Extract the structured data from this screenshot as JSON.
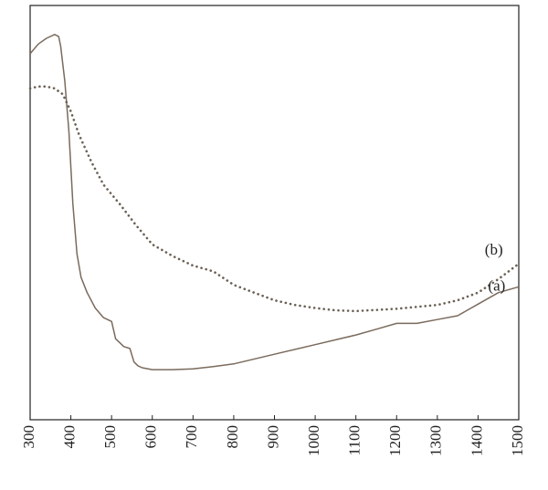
{
  "chart_data": {
    "type": "line",
    "title": "",
    "xlabel": "",
    "ylabel": "",
    "xlim": [
      300,
      1500
    ],
    "ylim": [
      0,
      1
    ],
    "x_ticks": [
      300,
      400,
      500,
      600,
      700,
      800,
      900,
      1000,
      1100,
      1200,
      1300,
      1400,
      1500
    ],
    "y_ticks": [],
    "grid": false,
    "legend": "none",
    "series_labels": [
      {
        "series": "a",
        "text": "(a)"
      },
      {
        "series": "b",
        "text": "(b)"
      }
    ],
    "colors": {
      "axis": "#222222",
      "series_a": "#7a6a5c",
      "series_b": "#6a6055"
    },
    "series": [
      {
        "id": "a",
        "style": "solid",
        "x": [
          300,
          320,
          340,
          360,
          370,
          375,
          385,
          395,
          405,
          415,
          425,
          440,
          460,
          480,
          500,
          510,
          520,
          530,
          545,
          555,
          565,
          575,
          600,
          650,
          700,
          750,
          800,
          900,
          1000,
          1100,
          1150,
          1200,
          1250,
          1300,
          1350,
          1400,
          1450,
          1500
        ],
        "y": [
          0.95,
          0.975,
          0.99,
          1.0,
          0.995,
          0.97,
          0.88,
          0.75,
          0.56,
          0.43,
          0.37,
          0.33,
          0.29,
          0.265,
          0.255,
          0.21,
          0.2,
          0.19,
          0.185,
          0.15,
          0.14,
          0.135,
          0.13,
          0.13,
          0.132,
          0.138,
          0.145,
          0.17,
          0.195,
          0.22,
          0.235,
          0.25,
          0.25,
          0.26,
          0.27,
          0.3,
          0.33,
          0.345
        ]
      },
      {
        "id": "b",
        "style": "dotted",
        "x": [
          300,
          320,
          340,
          360,
          380,
          400,
          420,
          450,
          480,
          520,
          560,
          600,
          650,
          700,
          750,
          800,
          850,
          900,
          950,
          1000,
          1050,
          1100,
          1150,
          1200,
          1250,
          1300,
          1350,
          1400,
          1450,
          1500
        ],
        "y": [
          0.86,
          0.865,
          0.865,
          0.86,
          0.845,
          0.8,
          0.74,
          0.67,
          0.61,
          0.56,
          0.505,
          0.455,
          0.425,
          0.4,
          0.385,
          0.35,
          0.33,
          0.31,
          0.298,
          0.29,
          0.284,
          0.282,
          0.285,
          0.288,
          0.293,
          0.298,
          0.31,
          0.33,
          0.365,
          0.405
        ]
      }
    ]
  }
}
